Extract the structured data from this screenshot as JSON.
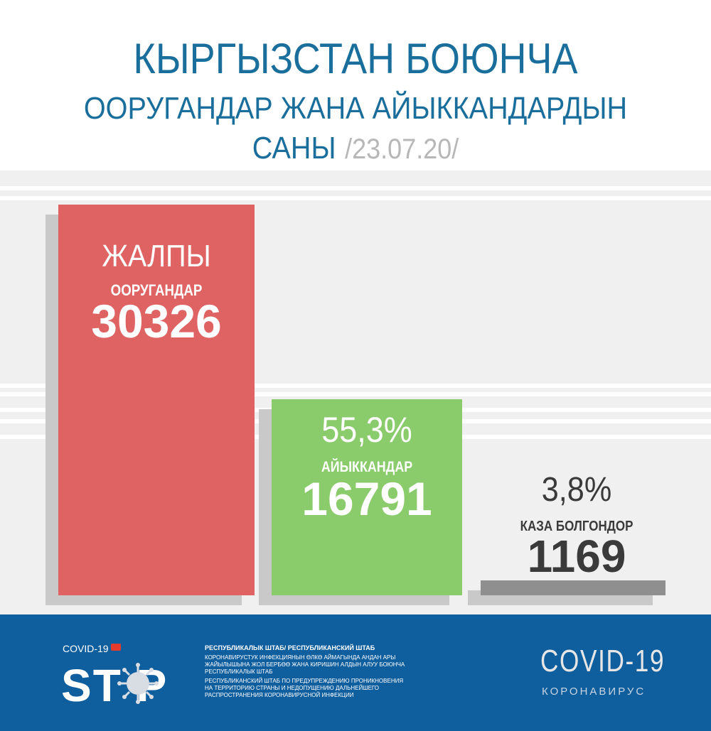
{
  "title": {
    "line1": "КЫРГЫЗСТАН БОЮНЧА",
    "line2": "ООРУГАНДАР ЖАНА АЙЫККАНДАРДЫН",
    "line3": "САНЫ",
    "date": "/23.07.20/"
  },
  "chart_data": {
    "type": "bar",
    "categories": [
      "ЖАЛПЫ ООРУГАНДАР",
      "АЙЫККАНДАР",
      "КАЗА БОЛГОНДОР"
    ],
    "values": [
      30326,
      16791,
      1169
    ],
    "percent_labels": [
      "",
      "55,3%",
      "3,8%"
    ],
    "colors": [
      "#e06363",
      "#8acb6b",
      "#8f8f8f"
    ]
  },
  "labels": {
    "total_title": "ЖАЛПЫ",
    "total_sub": "ООРУГАНДАР",
    "total_value": "30326",
    "recovered_pct": "55,3%",
    "recovered_sub": "АЙЫККАНДАР",
    "recovered_value": "16791",
    "deaths_pct": "3,8%",
    "deaths_sub": "КАЗА БОЛГОНДОР",
    "deaths_value": "1169"
  },
  "footer": {
    "covid_small": "COVID-19",
    "stop": "ST  P",
    "info_heading": "РЕСПУБЛИКАЛЫК ШТАБ/ РЕСПУБЛИКАНСКИЙ ШТАБ",
    "info_ky": "КОРОНАВИРУСТУК ИНФЕКЦИЯНЫН ӨЛКӨ АЙМАГЫНДА АНДАН АРЫ ЖАЙЫЛЫШЫНА ЖОЛ БЕРБӨӨ ЖАНА КИРИШИН АЛДЫН АЛУУ БОЮНЧА РЕСПУБЛИКАЛЫК ШТАБ",
    "info_ru": "РЕСПУБЛИКАНСКИЙ ШТАБ ПО ПРЕДУПРЕЖДЕНИЮ ПРОНИКНОВЕНИЯ НА ТЕРРИТОРИЮ СТРАНЫ И НЕДОПУЩЕНИЮ ДАЛЬНЕЙШЕГО РАСПРОСТРАНЕНИЯ КОРОНАВИРУСНОЙ ИНФЕКЦИИ",
    "covid19": "COVID-19",
    "corona": "КОРОНАВИРУС"
  }
}
